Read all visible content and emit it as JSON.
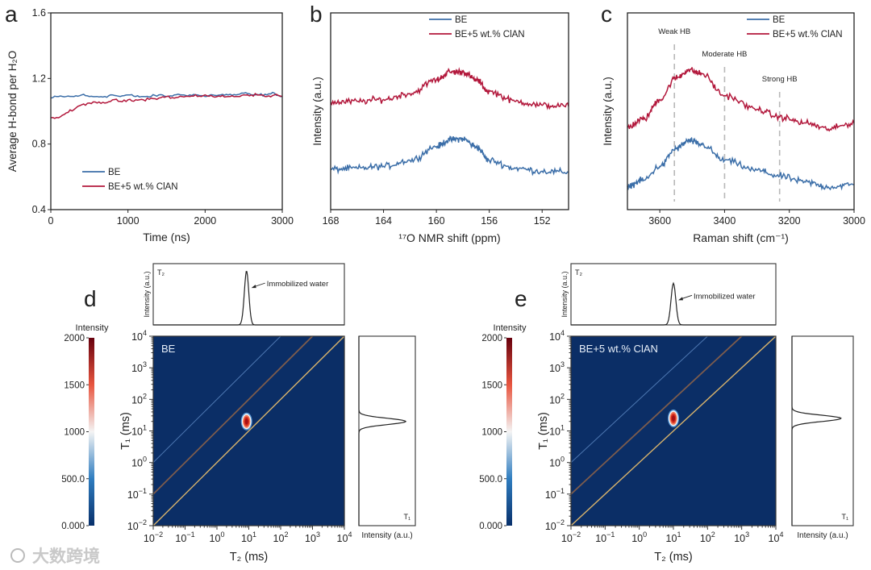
{
  "figure": {
    "panel_labels": {
      "a": "a",
      "b": "b",
      "c": "c",
      "d": "d",
      "e": "e"
    },
    "watermark": "大数跨境"
  },
  "colors": {
    "BE": "#3b6ea8",
    "BE_ClAN": "#b2173b",
    "heatmap_bg": "#0b2e66",
    "guide_1": "#d8b36c",
    "guide_10": "#7d5c4d",
    "guide_100": "#4e78b2"
  },
  "chart_data": [
    {
      "id": "a",
      "type": "line",
      "xlabel": "Time (ns)",
      "ylabel": "Average H-bond per H₂O",
      "xlim": [
        0,
        3000
      ],
      "ylim": [
        0.4,
        1.6
      ],
      "xticks": [
        0,
        1000,
        2000,
        3000
      ],
      "xtick_labels": [
        "0",
        "1000",
        "2000",
        "3000"
      ],
      "yticks": [
        0.4,
        0.8,
        1.2,
        1.6
      ],
      "ytick_labels": [
        "0.4",
        "0.8",
        "1.2",
        "1.6"
      ],
      "legend": {
        "position": "bottom-left",
        "entries": [
          "BE",
          "BE+5 wt.% ClAN"
        ]
      },
      "x": [
        0,
        100,
        200,
        300,
        400,
        500,
        600,
        700,
        800,
        900,
        1000,
        1100,
        1200,
        1300,
        1400,
        1500,
        1600,
        1700,
        1800,
        1900,
        2000,
        2100,
        2200,
        2300,
        2400,
        2500,
        2600,
        2700,
        2800,
        2900,
        3000
      ],
      "series": [
        {
          "name": "BE",
          "values": [
            1.08,
            1.09,
            1.09,
            1.09,
            1.1,
            1.09,
            1.09,
            1.09,
            1.1,
            1.09,
            1.1,
            1.09,
            1.09,
            1.09,
            1.1,
            1.09,
            1.1,
            1.1,
            1.1,
            1.1,
            1.09,
            1.1,
            1.1,
            1.1,
            1.1,
            1.11,
            1.1,
            1.1,
            1.1,
            1.11,
            1.09
          ]
        },
        {
          "name": "BE+5 wt.% ClAN",
          "values": [
            0.96,
            0.96,
            0.99,
            1.01,
            1.04,
            1.05,
            1.05,
            1.05,
            1.07,
            1.06,
            1.07,
            1.07,
            1.07,
            1.08,
            1.08,
            1.09,
            1.08,
            1.09,
            1.09,
            1.09,
            1.1,
            1.09,
            1.09,
            1.09,
            1.09,
            1.1,
            1.1,
            1.1,
            1.09,
            1.1,
            1.09
          ]
        }
      ]
    },
    {
      "id": "b",
      "type": "line",
      "xlabel": "¹⁷O NMR shift (ppm)",
      "ylabel": "Intensity (a.u.)",
      "xlim": [
        168,
        150
      ],
      "ylim": [
        0,
        1
      ],
      "xticks": [
        168,
        164,
        160,
        156,
        152
      ],
      "xtick_labels": [
        "168",
        "164",
        "160",
        "156",
        "152"
      ],
      "legend": {
        "position": "top-right",
        "entries": [
          "BE",
          "BE+5 wt.% ClAN"
        ]
      },
      "x": [
        168,
        166,
        164,
        162,
        160,
        159,
        158,
        157,
        156,
        154,
        152,
        150
      ],
      "series": [
        {
          "name": "BE",
          "values": [
            0.205,
            0.21,
            0.22,
            0.25,
            0.32,
            0.355,
            0.36,
            0.32,
            0.25,
            0.21,
            0.195,
            0.19
          ]
        },
        {
          "name": "BE+5 wt.% ClAN",
          "values": [
            0.545,
            0.55,
            0.56,
            0.59,
            0.66,
            0.7,
            0.7,
            0.66,
            0.6,
            0.55,
            0.53,
            0.525
          ]
        }
      ]
    },
    {
      "id": "c",
      "type": "line",
      "xlabel": "Raman shift (cm⁻¹)",
      "ylabel": "Intensity (a.u.)",
      "xlim": [
        3700,
        3000
      ],
      "ylim": [
        0,
        1
      ],
      "xticks": [
        3600,
        3400,
        3200,
        3000
      ],
      "xtick_labels": [
        "3600",
        "3400",
        "3200",
        "3000"
      ],
      "legend": {
        "position": "top-right",
        "entries": [
          "BE",
          "BE+5 wt.% ClAN"
        ]
      },
      "annotations": [
        {
          "text": "Weak HB",
          "x": 3555
        },
        {
          "text": "Moderate HB",
          "x": 3400
        },
        {
          "text": "Strong HB",
          "x": 3230
        }
      ],
      "x": [
        3700,
        3650,
        3600,
        3550,
        3510,
        3470,
        3400,
        3300,
        3230,
        3150,
        3080,
        3000
      ],
      "series": [
        {
          "name": "BE",
          "values": [
            0.12,
            0.15,
            0.22,
            0.31,
            0.35,
            0.33,
            0.25,
            0.2,
            0.17,
            0.14,
            0.115,
            0.127
          ]
        },
        {
          "name": "BE+5 wt.% ClAN",
          "values": [
            0.42,
            0.46,
            0.56,
            0.67,
            0.71,
            0.69,
            0.58,
            0.51,
            0.47,
            0.44,
            0.41,
            0.44
          ]
        }
      ]
    },
    {
      "id": "d",
      "type": "heatmap",
      "title": "BE",
      "xlabel": "T₂ (ms)",
      "ylabel": "T₁ (ms)",
      "scale": "log",
      "xlim": [
        0.01,
        10000
      ],
      "ylim": [
        0.01,
        10000
      ],
      "ticks": [
        {
          "base": "10",
          "exp": "−2"
        },
        {
          "base": "10",
          "exp": "−1"
        },
        {
          "base": "10",
          "exp": "0"
        },
        {
          "base": "10",
          "exp": "1"
        },
        {
          "base": "10",
          "exp": "2"
        },
        {
          "base": "10",
          "exp": "3"
        },
        {
          "base": "10",
          "exp": "4"
        }
      ],
      "guide_ratios_T1_over_T2": [
        1,
        10,
        100
      ],
      "peak": {
        "T2": 8.5,
        "T1": 20,
        "intensity": 2000
      },
      "colorbar": {
        "label": "Intensity",
        "range": [
          0,
          2000
        ],
        "ticks": [
          0,
          500,
          1000,
          1500,
          2000
        ],
        "tick_labels": [
          "0.000",
          "500.0",
          "1000",
          "1500",
          "2000"
        ]
      },
      "projection_T2": {
        "label": "T₂",
        "ylabel": "Intensity (a.u.)",
        "peak_T2": 8.5,
        "rel_height": 0.88,
        "annotation": "Immobilized water"
      },
      "projection_T1": {
        "label": "T₁",
        "xlabel": "Intensity (a.u.)",
        "peak_T1": 20,
        "rel_height": 0.83
      }
    },
    {
      "id": "e",
      "type": "heatmap",
      "title": "BE+5 wt.% ClAN",
      "xlabel": "T₂ (ms)",
      "ylabel": "T₁ (ms)",
      "scale": "log",
      "xlim": [
        0.01,
        10000
      ],
      "ylim": [
        0.01,
        10000
      ],
      "ticks": [
        {
          "base": "10",
          "exp": "−2"
        },
        {
          "base": "10",
          "exp": "−1"
        },
        {
          "base": "10",
          "exp": "0"
        },
        {
          "base": "10",
          "exp": "1"
        },
        {
          "base": "10",
          "exp": "2"
        },
        {
          "base": "10",
          "exp": "3"
        },
        {
          "base": "10",
          "exp": "4"
        }
      ],
      "guide_ratios_T1_over_T2": [
        1,
        10,
        100
      ],
      "peak": {
        "T2": 10,
        "T1": 25,
        "intensity": 2000
      },
      "colorbar": {
        "label": "Intensity",
        "range": [
          0,
          2000
        ],
        "ticks": [
          0,
          500,
          1000,
          1500,
          2000
        ],
        "tick_labels": [
          "0.000",
          "500.0",
          "1000",
          "1500",
          "2000"
        ]
      },
      "projection_T2": {
        "label": "T₂",
        "ylabel": "Intensity (a.u.)",
        "peak_T2": 10,
        "rel_height": 0.68,
        "annotation": "Immobilized water"
      },
      "projection_T1": {
        "label": "T₁",
        "xlabel": "Intensity (a.u.)",
        "peak_T1": 25,
        "rel_height": 0.8
      }
    }
  ]
}
